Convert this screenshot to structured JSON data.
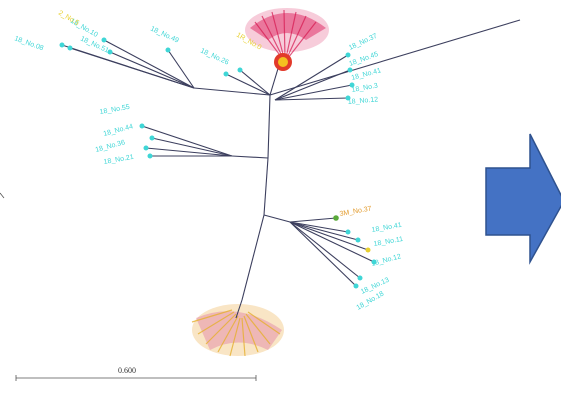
{
  "figure": {
    "scale_bar_label": "0.600",
    "colors": {
      "branch": "#3c3f5e",
      "tip_cyan": "#3fd6d6",
      "tip_green": "#5aaa3a",
      "tip_yellow": "#e8d030",
      "cluster_top": "#e0326a",
      "cluster_bottom": "#e8a030",
      "arrow_fill": "#4472c4",
      "arrow_stroke": "#2f528f"
    }
  },
  "labels": {
    "top_left": [
      "18_No.08",
      "18_No.10",
      "18_No.51",
      "18_No.49",
      "18_No.26",
      "2_No.5"
    ],
    "top_right": [
      "18_No.37",
      "18_No.45",
      "18_No.41",
      "18_No.3",
      "18_No.12"
    ],
    "top_red_cluster": [
      "1R_No.0"
    ],
    "mid_left": [
      "18_No.55",
      "18_No.44",
      "18_No.36",
      "18_No.21"
    ],
    "mid_right": [
      "3M_No.37",
      "18_No.41",
      "18_No.11",
      "18_No.12",
      "18_No.13",
      "18_No.18"
    ]
  },
  "arrow": {
    "direction": "right-icon"
  }
}
